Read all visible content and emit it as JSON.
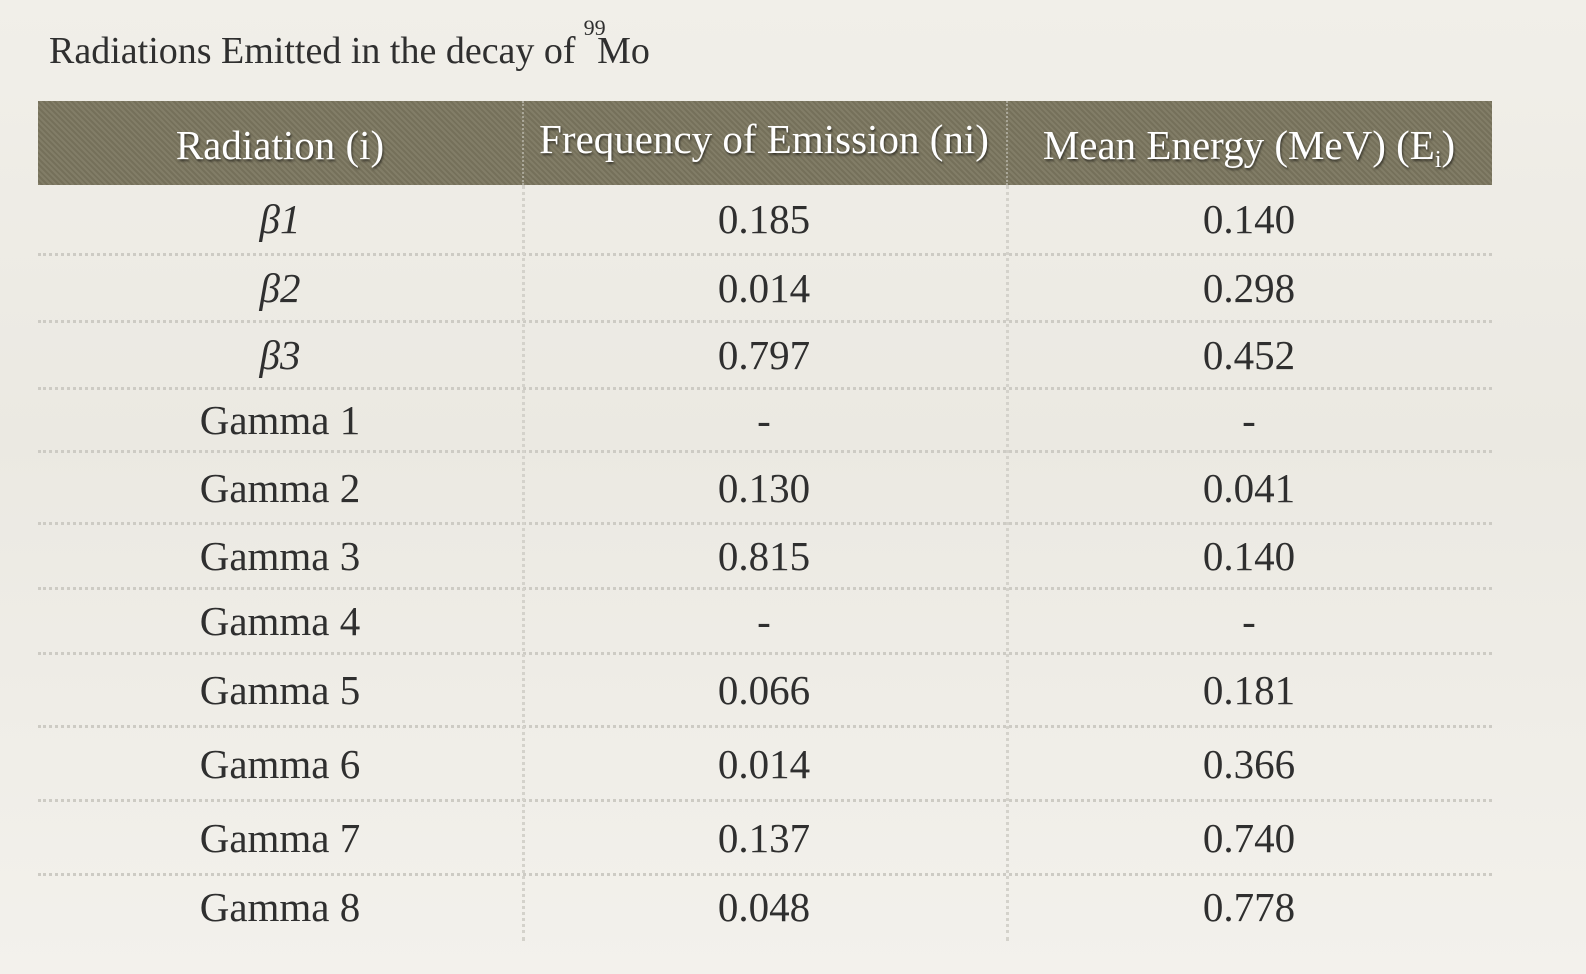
{
  "title": {
    "text": "Radiations Emitted in the decay of",
    "superscript": "99",
    "element": "Mo"
  },
  "table": {
    "headers": {
      "col1": "Radiation (i)",
      "col2": "Frequency of Emission (ni)",
      "col3_main": "Mean Energy (MeV) (E",
      "col3_sub": "i",
      "col3_close": ")"
    },
    "rows": [
      {
        "radiation": "β1",
        "frequency": "0.185",
        "energy": "0.140"
      },
      {
        "radiation": "β2",
        "frequency": "0.014",
        "energy": "0.298"
      },
      {
        "radiation": "β3",
        "frequency": "0.797",
        "energy": "0.452"
      },
      {
        "radiation": "Gamma 1",
        "frequency": "-",
        "energy": "-"
      },
      {
        "radiation": "Gamma 2",
        "frequency": "0.130",
        "energy": "0.041"
      },
      {
        "radiation": "Gamma 3",
        "frequency": "0.815",
        "energy": "0.140"
      },
      {
        "radiation": "Gamma 4",
        "frequency": "-",
        "energy": "-"
      },
      {
        "radiation": "Gamma 5",
        "frequency": "0.066",
        "energy": "0.181"
      },
      {
        "radiation": "Gamma 6",
        "frequency": "0.014",
        "energy": "0.366"
      },
      {
        "radiation": "Gamma 7",
        "frequency": "0.137",
        "energy": "0.740"
      },
      {
        "radiation": "Gamma 8",
        "frequency": "0.048",
        "energy": "0.778"
      }
    ]
  }
}
